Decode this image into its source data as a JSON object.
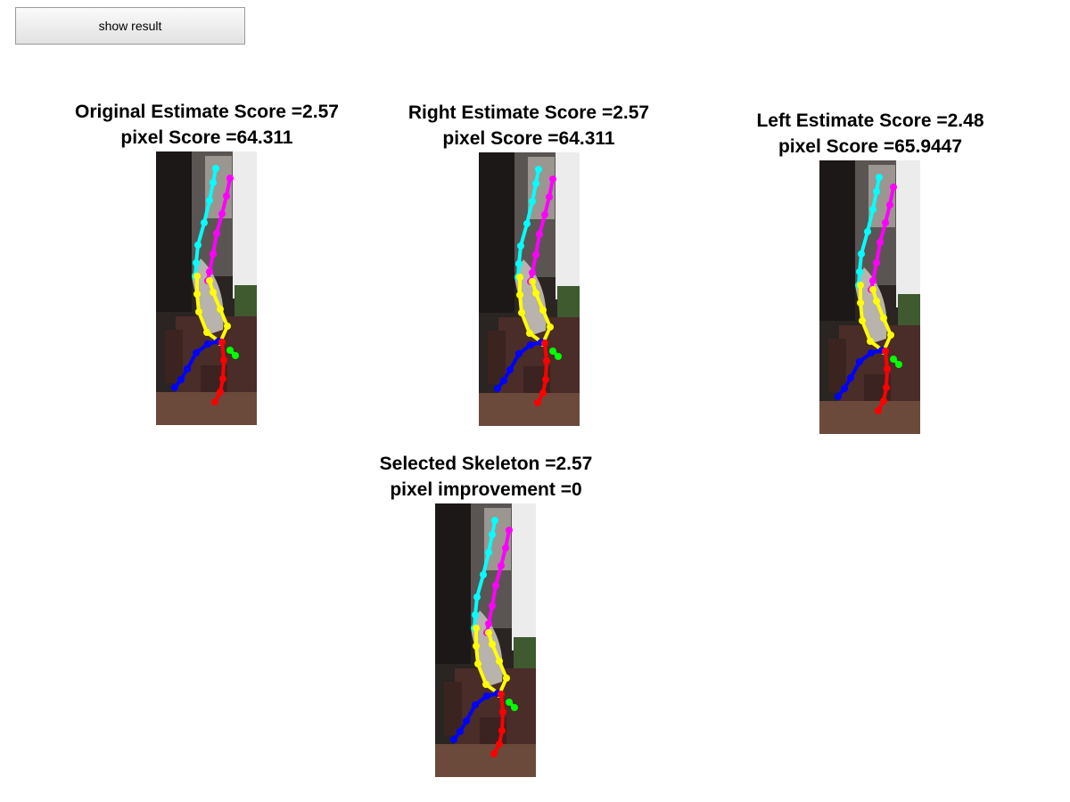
{
  "button": {
    "label": "show result"
  },
  "panels": [
    {
      "id": "original",
      "line1": "Original Estimate Score =2.57",
      "line2": "pixel Score =64.311"
    },
    {
      "id": "right",
      "line1": "Right Estimate Score =2.57",
      "line2": "pixel Score =64.311"
    },
    {
      "id": "left",
      "line1": "Left Estimate Score =2.48",
      "line2": "pixel Score =65.9447"
    },
    {
      "id": "selected",
      "line1": "Selected Skeleton =2.57",
      "line2": "pixel improvement =0"
    }
  ],
  "limb_colors": {
    "right_arm": "#00ffff",
    "left_arm": "#ff00ff",
    "torso": "#ffff00",
    "left_leg": "#0000ff",
    "right_leg": "#ff0000",
    "head": "#00ff00"
  }
}
